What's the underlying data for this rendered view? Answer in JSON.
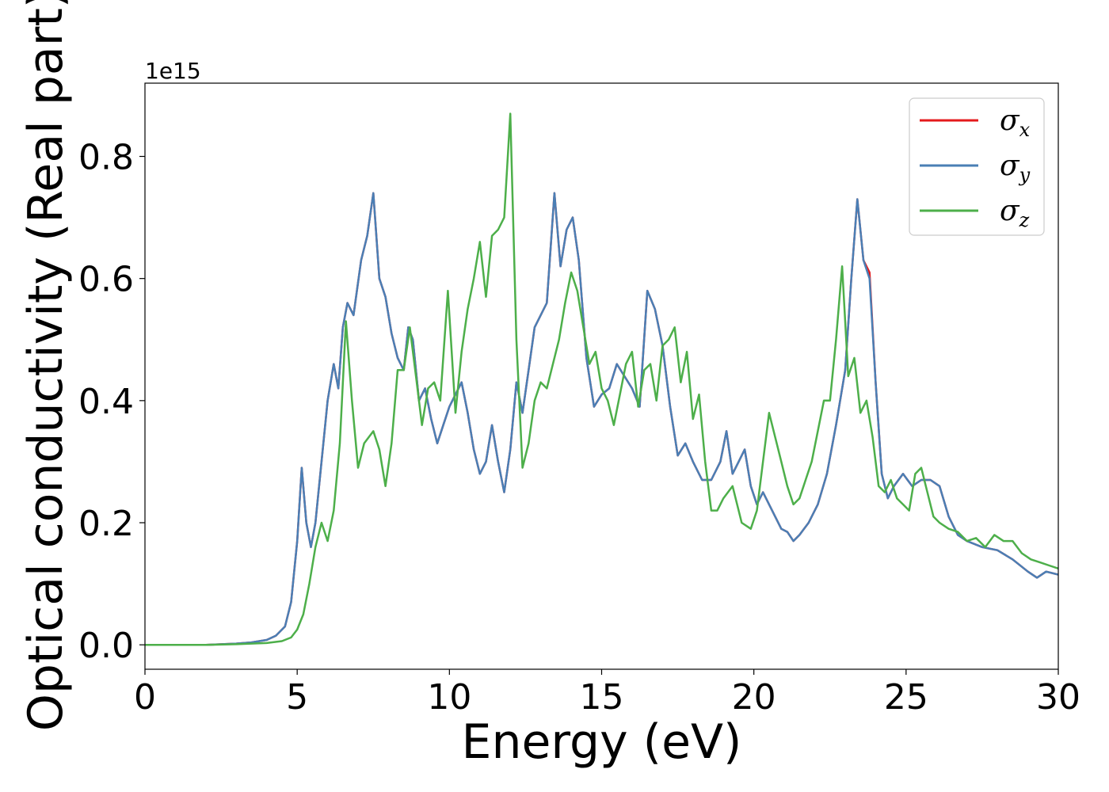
{
  "chart_data": {
    "type": "line",
    "xlabel": "Energy (eV)",
    "ylabel": "Optical conductivity (Real part)",
    "y_offset_label": "1e15",
    "xlim": [
      0,
      30
    ],
    "ylim": [
      -0.04,
      0.92
    ],
    "x_ticks": [
      0,
      5,
      10,
      15,
      20,
      25,
      30
    ],
    "y_ticks": [
      0.0,
      0.2,
      0.4,
      0.6,
      0.8
    ],
    "x_tick_labels": [
      "0",
      "5",
      "10",
      "15",
      "20",
      "25",
      "30"
    ],
    "y_tick_labels": [
      "0.0",
      "0.2",
      "0.4",
      "0.6",
      "0.8"
    ],
    "grid": false,
    "legend_position": "top-right",
    "series": [
      {
        "name": "σx",
        "symbol": "σ",
        "subscript": "x",
        "color": "#e41a1c",
        "x": [
          0,
          2,
          3,
          3.5,
          4,
          4.3,
          4.6,
          4.8,
          5.0,
          5.15,
          5.3,
          5.45,
          5.6,
          5.8,
          6.0,
          6.2,
          6.35,
          6.5,
          6.65,
          6.85,
          7.1,
          7.3,
          7.5,
          7.7,
          7.9,
          8.1,
          8.3,
          8.5,
          8.65,
          8.8,
          9.0,
          9.2,
          9.4,
          9.6,
          9.8,
          10.0,
          10.2,
          10.4,
          10.6,
          10.8,
          11.0,
          11.2,
          11.4,
          11.6,
          11.8,
          12.0,
          12.2,
          12.4,
          12.6,
          12.8,
          13.0,
          13.2,
          13.45,
          13.65,
          13.85,
          14.05,
          14.25,
          14.5,
          14.75,
          15.0,
          15.25,
          15.5,
          15.75,
          16.0,
          16.25,
          16.5,
          16.75,
          17.0,
          17.25,
          17.5,
          17.75,
          18.0,
          18.3,
          18.6,
          18.9,
          19.1,
          19.3,
          19.5,
          19.7,
          19.9,
          20.1,
          20.3,
          20.5,
          20.7,
          20.9,
          21.1,
          21.3,
          21.5,
          21.8,
          22.1,
          22.4,
          22.7,
          23.0,
          23.2,
          23.4,
          23.6,
          23.8,
          24.0,
          24.2,
          24.4,
          24.6,
          24.9,
          25.2,
          25.5,
          25.8,
          26.1,
          26.4,
          26.7,
          27.0,
          27.5,
          28.0,
          28.5,
          29.0,
          29.3,
          29.6,
          30.0
        ],
        "y": [
          0.0,
          0.0,
          0.002,
          0.004,
          0.008,
          0.015,
          0.03,
          0.07,
          0.17,
          0.29,
          0.2,
          0.16,
          0.2,
          0.3,
          0.4,
          0.46,
          0.42,
          0.52,
          0.56,
          0.54,
          0.63,
          0.67,
          0.74,
          0.6,
          0.57,
          0.51,
          0.47,
          0.45,
          0.52,
          0.5,
          0.4,
          0.42,
          0.37,
          0.33,
          0.36,
          0.39,
          0.41,
          0.43,
          0.38,
          0.32,
          0.28,
          0.3,
          0.36,
          0.3,
          0.25,
          0.32,
          0.43,
          0.38,
          0.45,
          0.52,
          0.54,
          0.56,
          0.74,
          0.62,
          0.68,
          0.7,
          0.63,
          0.47,
          0.39,
          0.41,
          0.42,
          0.46,
          0.44,
          0.42,
          0.39,
          0.58,
          0.55,
          0.49,
          0.39,
          0.31,
          0.33,
          0.3,
          0.27,
          0.27,
          0.3,
          0.35,
          0.28,
          0.3,
          0.32,
          0.26,
          0.23,
          0.25,
          0.23,
          0.21,
          0.19,
          0.185,
          0.17,
          0.18,
          0.2,
          0.23,
          0.28,
          0.36,
          0.45,
          0.6,
          0.73,
          0.63,
          0.61,
          0.43,
          0.28,
          0.24,
          0.26,
          0.28,
          0.26,
          0.27,
          0.27,
          0.26,
          0.21,
          0.18,
          0.17,
          0.16,
          0.155,
          0.14,
          0.12,
          0.11,
          0.12,
          0.115
        ]
      },
      {
        "name": "σy",
        "symbol": "σ",
        "subscript": "y",
        "color": "#4a7fb5",
        "x": [
          0,
          2,
          3,
          3.5,
          4,
          4.3,
          4.6,
          4.8,
          5.0,
          5.15,
          5.3,
          5.45,
          5.6,
          5.8,
          6.0,
          6.2,
          6.35,
          6.5,
          6.65,
          6.85,
          7.1,
          7.3,
          7.5,
          7.7,
          7.9,
          8.1,
          8.3,
          8.5,
          8.65,
          8.8,
          9.0,
          9.2,
          9.4,
          9.6,
          9.8,
          10.0,
          10.2,
          10.4,
          10.6,
          10.8,
          11.0,
          11.2,
          11.4,
          11.6,
          11.8,
          12.0,
          12.2,
          12.4,
          12.6,
          12.8,
          13.0,
          13.2,
          13.45,
          13.65,
          13.85,
          14.05,
          14.25,
          14.5,
          14.75,
          15.0,
          15.25,
          15.5,
          15.75,
          16.0,
          16.25,
          16.5,
          16.75,
          17.0,
          17.25,
          17.5,
          17.75,
          18.0,
          18.3,
          18.6,
          18.9,
          19.1,
          19.3,
          19.5,
          19.7,
          19.9,
          20.1,
          20.3,
          20.5,
          20.7,
          20.9,
          21.1,
          21.3,
          21.5,
          21.8,
          22.1,
          22.4,
          22.7,
          23.0,
          23.2,
          23.4,
          23.6,
          23.8,
          24.0,
          24.2,
          24.4,
          24.6,
          24.9,
          25.2,
          25.5,
          25.8,
          26.1,
          26.4,
          26.7,
          27.0,
          27.5,
          28.0,
          28.5,
          29.0,
          29.3,
          29.6,
          30.0
        ],
        "y": [
          0.0,
          0.0,
          0.002,
          0.004,
          0.008,
          0.015,
          0.03,
          0.07,
          0.17,
          0.29,
          0.2,
          0.16,
          0.2,
          0.3,
          0.4,
          0.46,
          0.42,
          0.52,
          0.56,
          0.54,
          0.63,
          0.67,
          0.74,
          0.6,
          0.57,
          0.51,
          0.47,
          0.45,
          0.52,
          0.5,
          0.4,
          0.42,
          0.37,
          0.33,
          0.36,
          0.39,
          0.41,
          0.43,
          0.38,
          0.32,
          0.28,
          0.3,
          0.36,
          0.3,
          0.25,
          0.32,
          0.43,
          0.38,
          0.45,
          0.52,
          0.54,
          0.56,
          0.74,
          0.62,
          0.68,
          0.7,
          0.63,
          0.47,
          0.39,
          0.41,
          0.42,
          0.46,
          0.44,
          0.42,
          0.39,
          0.58,
          0.55,
          0.49,
          0.39,
          0.31,
          0.33,
          0.3,
          0.27,
          0.27,
          0.3,
          0.35,
          0.28,
          0.3,
          0.32,
          0.26,
          0.23,
          0.25,
          0.23,
          0.21,
          0.19,
          0.185,
          0.17,
          0.18,
          0.2,
          0.23,
          0.28,
          0.36,
          0.45,
          0.6,
          0.73,
          0.63,
          0.6,
          0.43,
          0.28,
          0.24,
          0.26,
          0.28,
          0.26,
          0.27,
          0.27,
          0.26,
          0.21,
          0.18,
          0.17,
          0.16,
          0.155,
          0.14,
          0.12,
          0.11,
          0.12,
          0.115
        ]
      },
      {
        "name": "σz",
        "symbol": "σ",
        "subscript": "z",
        "color": "#4daf4a",
        "x": [
          0,
          2,
          3,
          4,
          4.5,
          4.8,
          5.0,
          5.2,
          5.4,
          5.6,
          5.8,
          6.0,
          6.2,
          6.4,
          6.6,
          6.8,
          7.0,
          7.2,
          7.5,
          7.7,
          7.9,
          8.1,
          8.3,
          8.5,
          8.7,
          8.9,
          9.1,
          9.3,
          9.5,
          9.7,
          9.95,
          10.2,
          10.4,
          10.6,
          10.8,
          11.0,
          11.2,
          11.4,
          11.6,
          11.8,
          12.0,
          12.2,
          12.4,
          12.6,
          12.8,
          13.0,
          13.2,
          13.4,
          13.6,
          13.8,
          14.0,
          14.2,
          14.4,
          14.6,
          14.8,
          15.0,
          15.2,
          15.4,
          15.6,
          15.8,
          16.0,
          16.2,
          16.4,
          16.6,
          16.8,
          17.0,
          17.2,
          17.4,
          17.6,
          17.8,
          18.0,
          18.2,
          18.4,
          18.6,
          18.8,
          19.0,
          19.3,
          19.6,
          19.9,
          20.1,
          20.3,
          20.5,
          20.7,
          20.9,
          21.1,
          21.3,
          21.5,
          21.7,
          21.9,
          22.1,
          22.3,
          22.5,
          22.7,
          22.9,
          23.1,
          23.3,
          23.5,
          23.7,
          23.9,
          24.1,
          24.3,
          24.5,
          24.7,
          24.9,
          25.1,
          25.3,
          25.5,
          25.7,
          25.9,
          26.1,
          26.4,
          26.7,
          27.0,
          27.3,
          27.6,
          27.9,
          28.2,
          28.5,
          28.8,
          29.1,
          29.4,
          29.7,
          30.0
        ],
        "y": [
          0.0,
          0.0,
          0.001,
          0.003,
          0.006,
          0.012,
          0.025,
          0.05,
          0.1,
          0.16,
          0.2,
          0.17,
          0.22,
          0.33,
          0.53,
          0.4,
          0.29,
          0.33,
          0.35,
          0.32,
          0.26,
          0.33,
          0.45,
          0.45,
          0.52,
          0.44,
          0.36,
          0.42,
          0.43,
          0.4,
          0.58,
          0.38,
          0.48,
          0.55,
          0.6,
          0.66,
          0.57,
          0.67,
          0.68,
          0.7,
          0.87,
          0.5,
          0.29,
          0.33,
          0.4,
          0.43,
          0.42,
          0.46,
          0.5,
          0.56,
          0.61,
          0.58,
          0.52,
          0.46,
          0.48,
          0.42,
          0.4,
          0.36,
          0.41,
          0.46,
          0.48,
          0.39,
          0.45,
          0.46,
          0.4,
          0.49,
          0.5,
          0.52,
          0.43,
          0.48,
          0.37,
          0.41,
          0.3,
          0.22,
          0.22,
          0.24,
          0.26,
          0.2,
          0.19,
          0.22,
          0.3,
          0.38,
          0.34,
          0.3,
          0.26,
          0.23,
          0.24,
          0.27,
          0.3,
          0.35,
          0.4,
          0.4,
          0.5,
          0.62,
          0.44,
          0.47,
          0.38,
          0.4,
          0.34,
          0.26,
          0.25,
          0.27,
          0.24,
          0.23,
          0.22,
          0.28,
          0.29,
          0.25,
          0.21,
          0.2,
          0.19,
          0.185,
          0.17,
          0.175,
          0.16,
          0.18,
          0.17,
          0.17,
          0.15,
          0.14,
          0.135,
          0.13,
          0.125
        ]
      }
    ]
  }
}
